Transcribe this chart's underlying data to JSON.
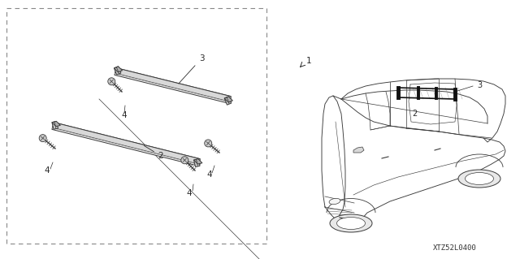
{
  "background_color": "#ffffff",
  "watermark": "XTZ52L0400",
  "fig_width": 6.4,
  "fig_height": 3.19,
  "dpi": 100,
  "label_color": "#2a2a2a",
  "line_color": "#3a3a3a",
  "gray_fill": "#d8d8d8",
  "light_fill": "#f0f0f0"
}
